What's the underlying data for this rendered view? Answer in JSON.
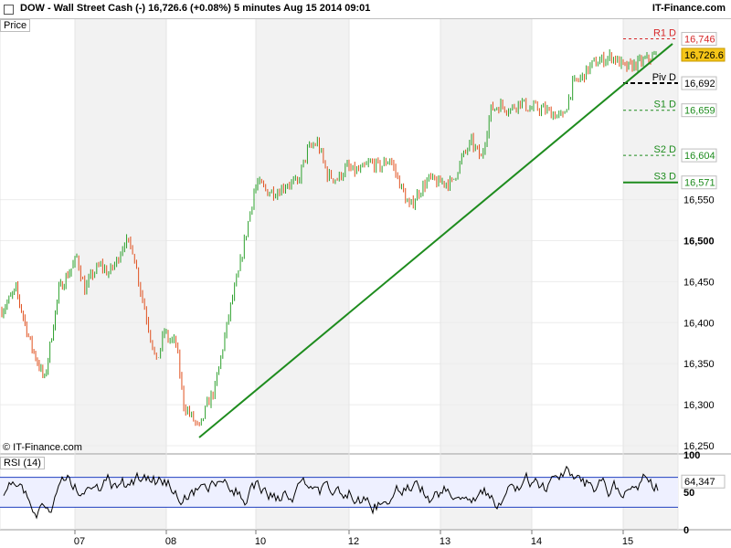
{
  "header": {
    "title": "DOW - Wall Street Cash (-)     16,726.6 (+0.08%)     5 minutes   Aug 15 2014 09:01",
    "brand": "IT-Finance.com"
  },
  "price_panel_label": "Price",
  "watermark": "© IT-Finance.com",
  "rsi_label": "RSI (14)",
  "colors": {
    "trend": "#1e8c1e",
    "up": "#2ca02c",
    "down": "#e0501e",
    "r1": "#d62728",
    "piv": "#000000",
    "support": "#1e8c1e",
    "last_price_bg": "#f5c518",
    "rsi_line": "#000000",
    "rsi_band": "#1f3fbf"
  },
  "chart_data": {
    "type": "candlestick",
    "instrument": "DOW - Wall Street Cash (-)",
    "timeframe": "5 minutes",
    "last_price": 16726.6,
    "change_pct": "+0.08%",
    "date": "Aug 15 2014 09:01",
    "y_ticks": [
      16250,
      16300,
      16350,
      16400,
      16450,
      16500,
      16550
    ],
    "ylim": [
      16240,
      16770
    ],
    "x_ticks": [
      "07",
      "08",
      "10",
      "12",
      "13",
      "14",
      "15"
    ],
    "pivots": [
      {
        "name": "R1 D",
        "value": 16746,
        "label": "16,746",
        "style": "dashed",
        "color": "#d62728"
      },
      {
        "name": "Piv D",
        "value": 16692,
        "label": "16,692",
        "style": "dashed",
        "color": "#000000"
      },
      {
        "name": "S1 D",
        "value": 16659,
        "label": "16,659",
        "style": "dashed",
        "color": "#1e8c1e"
      },
      {
        "name": "S2 D",
        "value": 16604,
        "label": "16,604",
        "style": "dashed",
        "color": "#1e8c1e"
      },
      {
        "name": "S3 D",
        "value": 16571,
        "label": "16,571",
        "style": "solid",
        "color": "#1e8c1e"
      }
    ],
    "last_price_label": "16,726.6",
    "trendline": {
      "from": [
        "08",
        16260
      ],
      "to": [
        "15",
        16725
      ]
    },
    "price_path": [
      [
        "06",
        16415
      ],
      [
        "06",
        16440
      ],
      [
        "06",
        16375
      ],
      [
        "06",
        16330
      ],
      [
        "06",
        16440
      ],
      [
        "06",
        16470
      ],
      [
        "07",
        16480
      ],
      [
        "07",
        16440
      ],
      [
        "07",
        16460
      ],
      [
        "07",
        16470
      ],
      [
        "07",
        16460
      ],
      [
        "07",
        16475
      ],
      [
        "07",
        16500
      ],
      [
        "07",
        16490
      ],
      [
        "07",
        16440
      ],
      [
        "07",
        16395
      ],
      [
        "07",
        16350
      ],
      [
        "07",
        16390
      ],
      [
        "08",
        16380
      ],
      [
        "08",
        16375
      ],
      [
        "08",
        16300
      ],
      [
        "08",
        16285
      ],
      [
        "08",
        16270
      ],
      [
        "08",
        16300
      ],
      [
        "08",
        16320
      ],
      [
        "08",
        16370
      ],
      [
        "08",
        16420
      ],
      [
        "08",
        16460
      ],
      [
        "08",
        16510
      ],
      [
        "08",
        16560
      ],
      [
        "10",
        16570
      ],
      [
        "10",
        16560
      ],
      [
        "10",
        16560
      ],
      [
        "10",
        16570
      ],
      [
        "10",
        16570
      ],
      [
        "10",
        16610
      ],
      [
        "10",
        16620
      ],
      [
        "10",
        16580
      ],
      [
        "10",
        16575
      ],
      [
        "10",
        16590
      ],
      [
        "12",
        16585
      ],
      [
        "12",
        16585
      ],
      [
        "12",
        16595
      ],
      [
        "12",
        16590
      ],
      [
        "12",
        16600
      ],
      [
        "12",
        16570
      ],
      [
        "12",
        16540
      ],
      [
        "12",
        16560
      ],
      [
        "12",
        16575
      ],
      [
        "12",
        16570
      ],
      [
        "13",
        16572
      ],
      [
        "13",
        16570
      ],
      [
        "13",
        16600
      ],
      [
        "13",
        16620
      ],
      [
        "13",
        16600
      ],
      [
        "13",
        16660
      ],
      [
        "13",
        16665
      ],
      [
        "13",
        16660
      ],
      [
        "13",
        16670
      ],
      [
        "13",
        16660
      ],
      [
        "14",
        16662
      ],
      [
        "14",
        16660
      ],
      [
        "14",
        16655
      ],
      [
        "14",
        16650
      ],
      [
        "14",
        16690
      ],
      [
        "14",
        16700
      ],
      [
        "14",
        16715
      ],
      [
        "14",
        16720
      ],
      [
        "14",
        16725
      ],
      [
        "14",
        16715
      ],
      [
        "15",
        16710
      ],
      [
        "15",
        16718
      ],
      [
        "15",
        16726.6
      ]
    ],
    "rsi": {
      "label": "RSI (14)",
      "period": 14,
      "y_ticks": [
        0,
        50,
        100
      ],
      "bands": [
        30,
        70
      ],
      "last_value": 64.347,
      "last_label": "64,347"
    }
  }
}
